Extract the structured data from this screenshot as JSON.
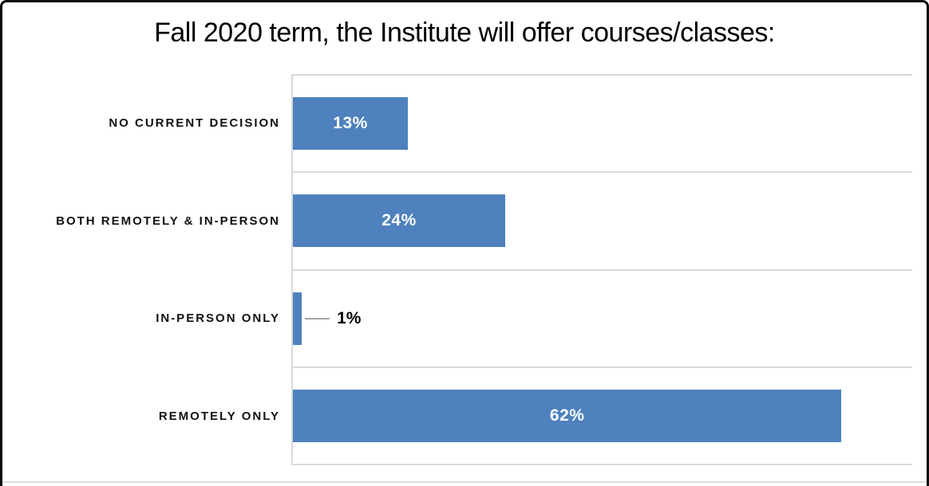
{
  "title": "Fall 2020 term, the Institute will offer courses/classes:",
  "chart_data": {
    "type": "bar",
    "orientation": "horizontal",
    "title": "Fall 2020 term, the Institute will offer courses/classes:",
    "categories": [
      "NO CURRENT DECISION",
      "BOTH REMOTELY & IN-PERSON",
      "IN-PERSON ONLY",
      "REMOTELY ONLY"
    ],
    "values": [
      13,
      24,
      1,
      62
    ],
    "data_labels": [
      "13%",
      "24%",
      "1%",
      "62%"
    ],
    "xlabel": "",
    "ylabel": "",
    "xlim": [
      0,
      70
    ],
    "grid": "category separator lines only, no vertical gridlines",
    "legend": "none",
    "bar_color": "#4e81bd",
    "data_label_color_inside": "#ffffff",
    "data_label_color_outside": "#000000",
    "gridline_color": "#d9d9d9",
    "leader_line_color": "#a6a6a6"
  }
}
